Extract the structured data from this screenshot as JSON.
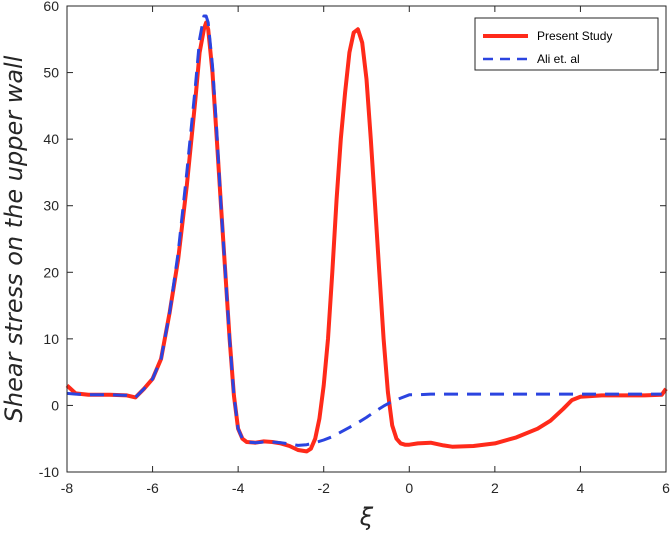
{
  "chart_data": {
    "type": "line",
    "title": "",
    "xlabel": "ξ",
    "ylabel": "Shear stress on the upper wall",
    "xlim": [
      -8,
      6
    ],
    "ylim": [
      -10,
      60
    ],
    "xticks": [
      -8,
      -6,
      -4,
      -2,
      0,
      2,
      4,
      6
    ],
    "yticks": [
      -10,
      0,
      10,
      20,
      30,
      40,
      50,
      60
    ],
    "xtick_labels": [
      "-8",
      "-6",
      "-4",
      "-2",
      "0",
      "2",
      "4",
      "6"
    ],
    "ytick_labels": [
      "-10",
      "0",
      "10",
      "20",
      "30",
      "40",
      "50",
      "60"
    ],
    "grid": false,
    "legend_position": "top-right",
    "series": [
      {
        "name": "Present Study",
        "color": "#ff2a1a",
        "style": "solid",
        "x": [
          -8,
          -7.8,
          -7.5,
          -7,
          -6.6,
          -6.4,
          -6.2,
          -6,
          -5.8,
          -5.6,
          -5.4,
          -5.2,
          -5,
          -4.9,
          -4.8,
          -4.75,
          -4.7,
          -4.6,
          -4.5,
          -4.4,
          -4.3,
          -4.2,
          -4.1,
          -4,
          -3.9,
          -3.8,
          -3.6,
          -3.4,
          -3.2,
          -3,
          -2.8,
          -2.6,
          -2.4,
          -2.3,
          -2.2,
          -2.1,
          -2,
          -1.9,
          -1.8,
          -1.7,
          -1.6,
          -1.5,
          -1.4,
          -1.3,
          -1.2,
          -1.1,
          -1,
          -0.9,
          -0.8,
          -0.7,
          -0.6,
          -0.5,
          -0.4,
          -0.3,
          -0.2,
          -0.1,
          0,
          0.2,
          0.5,
          0.8,
          1,
          1.5,
          2,
          2.5,
          3,
          3.3,
          3.6,
          3.8,
          4,
          4.5,
          5,
          5.5,
          5.9,
          6
        ],
        "y": [
          3,
          1.8,
          1.6,
          1.6,
          1.5,
          1.2,
          2.5,
          4,
          7,
          14,
          22,
          33,
          46,
          53,
          56.5,
          57.5,
          56.5,
          50,
          40,
          30,
          20,
          10,
          1.5,
          -3.5,
          -5,
          -5.5,
          -5.6,
          -5.4,
          -5.5,
          -5.7,
          -6.1,
          -6.7,
          -6.9,
          -6.5,
          -5,
          -2,
          3,
          10,
          20,
          31,
          40,
          47,
          53,
          56,
          56.5,
          54.5,
          49,
          40,
          30,
          20,
          10,
          2,
          -3,
          -5,
          -5.7,
          -5.9,
          -5.9,
          -5.7,
          -5.6,
          -6,
          -6.2,
          -6.1,
          -5.7,
          -4.8,
          -3.5,
          -2.3,
          -0.5,
          0.8,
          1.3,
          1.5,
          1.5,
          1.5,
          1.6,
          2.5
        ]
      },
      {
        "name": "Ali et. al",
        "color": "#2b44e0",
        "style": "dashed",
        "x": [
          -8,
          -7.8,
          -7.5,
          -7,
          -6.6,
          -6.4,
          -6.2,
          -6,
          -5.8,
          -5.6,
          -5.4,
          -5.2,
          -5,
          -4.9,
          -4.8,
          -4.75,
          -4.7,
          -4.6,
          -4.5,
          -4.4,
          -4.3,
          -4.2,
          -4.1,
          -4,
          -3.9,
          -3.8,
          -3.6,
          -3.4,
          -3.2,
          -3,
          -2.8,
          -2.6,
          -2.4,
          -2.2,
          -2,
          -1.8,
          -1.6,
          -1.4,
          -1.2,
          -1,
          -0.8,
          -0.6,
          -0.4,
          -0.2,
          0,
          0.2,
          0.5,
          1,
          2,
          3,
          4,
          5,
          5.9
        ],
        "y": [
          1.8,
          1.7,
          1.6,
          1.6,
          1.5,
          1.2,
          2.5,
          4,
          7,
          14,
          23,
          35,
          48,
          55,
          58.5,
          58.5,
          57.5,
          51,
          41,
          30,
          20,
          10,
          1.5,
          -3.5,
          -5,
          -5.5,
          -5.6,
          -5.5,
          -5.5,
          -5.6,
          -5.8,
          -6,
          -5.9,
          -5.6,
          -5.2,
          -4.7,
          -4,
          -3.3,
          -2.6,
          -1.8,
          -0.9,
          -0.1,
          0.6,
          1.1,
          1.6,
          1.6,
          1.7,
          1.7,
          1.7,
          1.7,
          1.7,
          1.7,
          1.7
        ]
      }
    ]
  }
}
